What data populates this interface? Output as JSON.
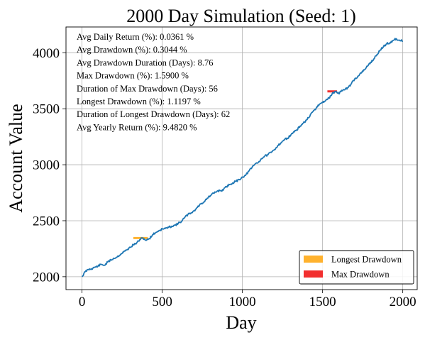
{
  "chart_data": {
    "type": "line",
    "title": "2000 Day Simulation (Seed: 1)",
    "xlabel": "Day",
    "ylabel": "Account Value",
    "xlim": [
      -100,
      2090
    ],
    "ylim": [
      1885,
      4230
    ],
    "xticks": [
      0,
      500,
      1000,
      1500,
      2000
    ],
    "xtick_labels": [
      "0",
      "500",
      "1000",
      "1500",
      "2000"
    ],
    "yticks": [
      2000,
      2500,
      3000,
      3500,
      4000
    ],
    "ytick_labels": [
      "2000",
      "2500",
      "3000",
      "3500",
      "4000"
    ],
    "grid": true,
    "series": [
      {
        "color": "#1f77b4",
        "x": [
          0,
          20,
          40,
          60,
          80,
          100,
          120,
          140,
          160,
          180,
          200,
          220,
          240,
          260,
          280,
          300,
          320,
          340,
          360,
          380,
          400,
          420,
          440,
          460,
          480,
          500,
          520,
          540,
          560,
          580,
          600,
          620,
          640,
          660,
          680,
          700,
          720,
          740,
          760,
          780,
          800,
          820,
          840,
          860,
          880,
          900,
          920,
          940,
          960,
          980,
          1000,
          1020,
          1040,
          1060,
          1080,
          1100,
          1120,
          1140,
          1160,
          1180,
          1200,
          1220,
          1240,
          1260,
          1280,
          1300,
          1320,
          1340,
          1360,
          1380,
          1400,
          1420,
          1440,
          1460,
          1480,
          1500,
          1520,
          1540,
          1560,
          1580,
          1600,
          1620,
          1640,
          1660,
          1680,
          1700,
          1720,
          1740,
          1760,
          1780,
          1800,
          1820,
          1840,
          1860,
          1880,
          1900,
          1920,
          1940,
          1960,
          1980,
          2000
        ],
        "values": [
          2000,
          2045,
          2065,
          2072,
          2085,
          2095,
          2110,
          2102,
          2130,
          2150,
          2165,
          2178,
          2200,
          2222,
          2240,
          2262,
          2285,
          2300,
          2330,
          2346,
          2325,
          2340,
          2375,
          2395,
          2412,
          2425,
          2432,
          2440,
          2452,
          2460,
          2475,
          2495,
          2528,
          2555,
          2570,
          2590,
          2620,
          2650,
          2668,
          2700,
          2722,
          2745,
          2762,
          2770,
          2772,
          2805,
          2822,
          2838,
          2852,
          2868,
          2890,
          2905,
          2942,
          2975,
          3008,
          3022,
          3055,
          3078,
          3090,
          3110,
          3135,
          3170,
          3195,
          3222,
          3238,
          3260,
          3295,
          3308,
          3345,
          3372,
          3400,
          3430,
          3475,
          3505,
          3540,
          3555,
          3575,
          3595,
          3635,
          3655,
          3635,
          3665,
          3670,
          3690,
          3725,
          3765,
          3790,
          3818,
          3846,
          3880,
          3915,
          3945,
          3985,
          4025,
          4055,
          4080,
          4090,
          4110,
          4125,
          4112,
          4105
        ]
      }
    ],
    "drawdown_segments": {
      "longest": {
        "x_start": 320,
        "x_end": 410,
        "y": 2345,
        "color": "#ffb22e"
      },
      "max": {
        "x_start": 1530,
        "x_end": 1590,
        "y": 3655,
        "color": "#f22f2f"
      }
    },
    "stats": [
      "Avg Daily Return (%): 0.0361 %",
      "Avg Drawdown (%): 0.3044 %",
      "Avg Drawdown Duration (Days): 8.76",
      "Max Drawdown (%): 1.5900 %",
      "Duration of Max Drawdown (Days): 56",
      "Longest Drawdown (%): 1.1197 %",
      "Duration of Longest Drawdown (Days): 62",
      "Avg Yearly Return (%): 9.4820 %"
    ],
    "legend": {
      "position": "lower-right",
      "entries": [
        {
          "label": "Longest Drawdown",
          "color": "#ffb22e"
        },
        {
          "label": "Max Drawdown",
          "color": "#f22f2f"
        }
      ]
    }
  }
}
